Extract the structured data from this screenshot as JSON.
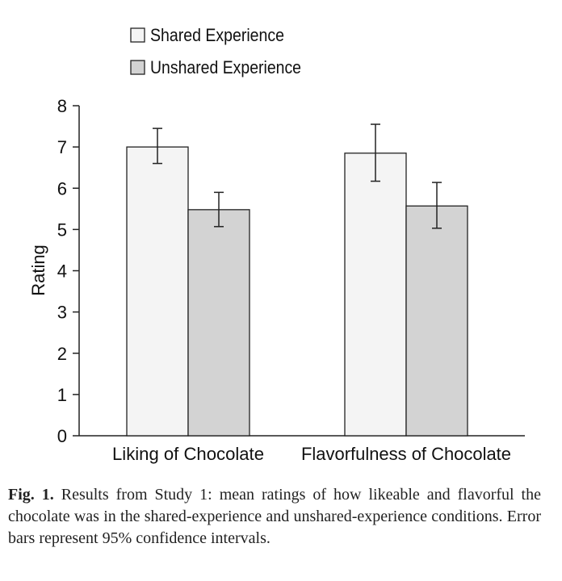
{
  "chart_data": {
    "type": "bar",
    "categories": [
      "Liking of Chocolate",
      "Flavorfulness of Chocolate"
    ],
    "series": [
      {
        "name": "Shared Experience",
        "values": [
          7.0,
          6.85
        ],
        "ci_low": [
          6.6,
          6.17
        ],
        "ci_high": [
          7.45,
          7.55
        ],
        "color": "#f4f4f4"
      },
      {
        "name": "Unshared Experience",
        "values": [
          5.48,
          5.57
        ],
        "ci_low": [
          5.07,
          5.03
        ],
        "ci_high": [
          5.9,
          6.14
        ],
        "color": "#d3d3d3"
      }
    ],
    "ylabel": "Rating",
    "ylim": [
      0,
      8
    ],
    "yticks": [
      "0",
      "1",
      "2",
      "3",
      "4",
      "5",
      "6",
      "7",
      "8"
    ],
    "legend_position": "top-left",
    "grid": false
  },
  "caption": {
    "label": "Fig. 1.",
    "text": "Results from Study 1: mean ratings of how likeable and flavorful the chocolate was in the shared-experience and unshared-experience conditions. Error bars represent 95% confidence intervals."
  }
}
